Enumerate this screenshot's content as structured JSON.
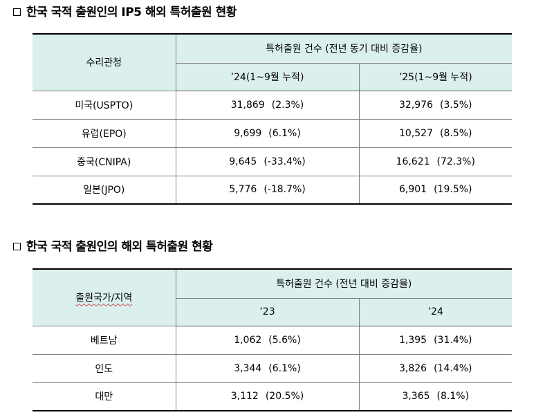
{
  "section1": {
    "title": "한국 국적 출원인의 IP5 해외 특허출원 현황",
    "header": {
      "col1": "수리관청",
      "group": "특허출원 건수 (전년 동기 대비 증감율)",
      "sub1": "’24(1~9월 누적)",
      "sub2": "’25(1~9월 누적)"
    },
    "rows": [
      {
        "office": "미국(USPTO)",
        "v24": "31,869",
        "p24": "(2.3%)",
        "v25": "32,976",
        "p25": "(3.5%)"
      },
      {
        "office": "유럽(EPO)",
        "v24": "9,699",
        "p24": "(6.1%)",
        "v25": "10,527",
        "p25": "(8.5%)"
      },
      {
        "office": "중국(CNIPA)",
        "v24": "9,645",
        "p24": "(-33.4%)",
        "v25": "16,621",
        "p25": "(72.3%)"
      },
      {
        "office": "일본(JPO)",
        "v24": "5,776",
        "p24": "(-18.7%)",
        "v25": "6,901",
        "p25": "(19.5%)"
      }
    ]
  },
  "section2": {
    "title": "한국 국적 출원인의 해외 특허출원 현황",
    "header": {
      "col1": "출원국가/지역",
      "group": "특허출원 건수 (전년 대비 증감율)",
      "sub1": "’23",
      "sub2": "’24"
    },
    "rows": [
      {
        "country": "베트남",
        "v23": "1,062",
        "p23": "(5.6%)",
        "v24": "1,395",
        "p24": "(31.4%)"
      },
      {
        "country": "인도",
        "v23": "3,344",
        "p23": "(6.1%)",
        "v24": "3,826",
        "p24": "(14.4%)"
      },
      {
        "country": "대만",
        "v23": "3,112",
        "p23": "(20.5%)",
        "v24": "3,365",
        "p24": "(8.1%)"
      }
    ]
  }
}
